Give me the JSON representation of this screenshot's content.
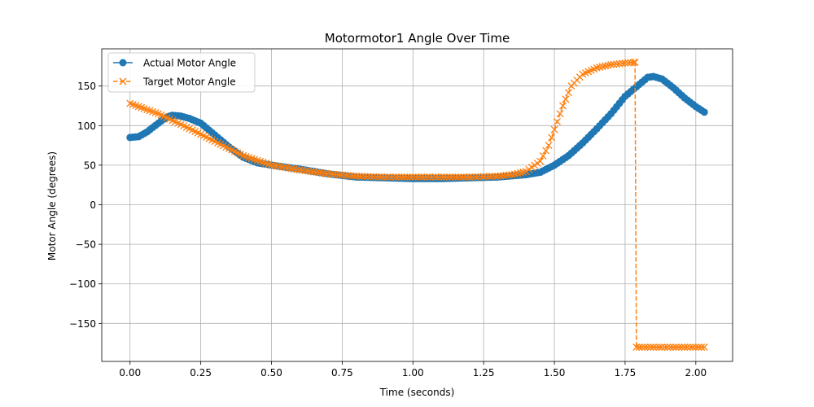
{
  "chart_data": {
    "type": "line",
    "title": "Motormotor1 Angle Over Time",
    "xlabel": "Time (seconds)",
    "ylabel": "Motor Angle (degrees)",
    "xlim": [
      -0.1,
      2.13
    ],
    "ylim": [
      -198,
      197
    ],
    "xticks": [
      0.0,
      0.25,
      0.5,
      0.75,
      1.0,
      1.25,
      1.5,
      1.75,
      2.0
    ],
    "xtick_labels": [
      "0.00",
      "0.25",
      "0.50",
      "0.75",
      "1.00",
      "1.25",
      "1.50",
      "1.75",
      "2.00"
    ],
    "yticks": [
      -150,
      -100,
      -50,
      0,
      50,
      100,
      150
    ],
    "ytick_labels": [
      "−150",
      "−100",
      "−50",
      "0",
      "50",
      "100",
      "150"
    ],
    "grid": true,
    "legend_position": "top-left",
    "series": [
      {
        "name": "Actual Motor Angle",
        "color": "#1f77b4",
        "marker": "circle",
        "linestyle": "solid",
        "key_points": [
          [
            0.0,
            85
          ],
          [
            0.03,
            86
          ],
          [
            0.06,
            92
          ],
          [
            0.1,
            103
          ],
          [
            0.13,
            111
          ],
          [
            0.15,
            113
          ],
          [
            0.18,
            112
          ],
          [
            0.21,
            109
          ],
          [
            0.25,
            103
          ],
          [
            0.3,
            88
          ],
          [
            0.35,
            73
          ],
          [
            0.4,
            60
          ],
          [
            0.45,
            53
          ],
          [
            0.5,
            50
          ],
          [
            0.6,
            45
          ],
          [
            0.7,
            39
          ],
          [
            0.8,
            35
          ],
          [
            0.9,
            34
          ],
          [
            1.0,
            33
          ],
          [
            1.1,
            33
          ],
          [
            1.2,
            34
          ],
          [
            1.3,
            35
          ],
          [
            1.4,
            38
          ],
          [
            1.45,
            41
          ],
          [
            1.5,
            50
          ],
          [
            1.55,
            62
          ],
          [
            1.6,
            78
          ],
          [
            1.65,
            96
          ],
          [
            1.7,
            115
          ],
          [
            1.75,
            137
          ],
          [
            1.8,
            152
          ],
          [
            1.83,
            161
          ],
          [
            1.85,
            162
          ],
          [
            1.88,
            159
          ],
          [
            1.92,
            148
          ],
          [
            1.96,
            135
          ],
          [
            2.0,
            124
          ],
          [
            2.03,
            117
          ]
        ]
      },
      {
        "name": "Target Motor Angle",
        "color": "#ff7f0e",
        "marker": "x",
        "linestyle": "dashed",
        "key_points": [
          [
            0.0,
            128
          ],
          [
            0.1,
            115
          ],
          [
            0.2,
            98
          ],
          [
            0.3,
            80
          ],
          [
            0.4,
            62
          ],
          [
            0.5,
            50
          ],
          [
            0.6,
            44
          ],
          [
            0.7,
            39
          ],
          [
            0.8,
            36
          ],
          [
            0.9,
            35
          ],
          [
            1.0,
            35
          ],
          [
            1.1,
            35
          ],
          [
            1.2,
            35
          ],
          [
            1.3,
            36
          ],
          [
            1.35,
            38
          ],
          [
            1.4,
            42
          ],
          [
            1.45,
            55
          ],
          [
            1.48,
            75
          ],
          [
            1.5,
            95
          ],
          [
            1.53,
            125
          ],
          [
            1.56,
            150
          ],
          [
            1.6,
            165
          ],
          [
            1.65,
            173
          ],
          [
            1.7,
            177
          ],
          [
            1.75,
            179
          ],
          [
            1.78,
            180
          ],
          [
            1.785,
            180
          ],
          [
            1.79,
            -180
          ],
          [
            1.85,
            -180
          ],
          [
            1.9,
            -180
          ],
          [
            1.95,
            -180
          ],
          [
            2.0,
            -180
          ],
          [
            2.03,
            -180
          ]
        ]
      }
    ]
  }
}
